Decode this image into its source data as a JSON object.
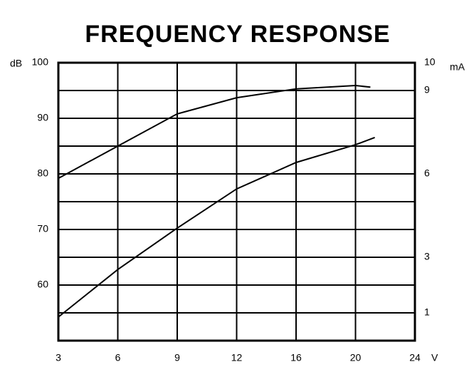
{
  "chart_data": {
    "type": "line",
    "title": "FREQUENCY RESPONSE",
    "y_label": "dB",
    "y2_label": "mA",
    "x_label": "V",
    "x": [
      3,
      6,
      9,
      12,
      16,
      20,
      21
    ],
    "series": [
      {
        "color": "#000000",
        "values": [
          79.2,
          85,
          90.8,
          93.7,
          95.3,
          95.9,
          95.6
        ]
      },
      {
        "color": "#000000",
        "axis": "y2",
        "x": [
          3,
          6,
          9,
          12,
          16,
          20,
          21.3
        ],
        "values": [
          0.85,
          2.56,
          4.05,
          5.46,
          6.41,
          7.05,
          7.31
        ]
      }
    ],
    "xlim": [
      3,
      24
    ],
    "xticks": [
      3,
      6,
      9,
      12,
      16,
      20,
      24
    ],
    "ylim": [
      50,
      100
    ],
    "yticks": [
      60,
      70,
      80,
      90,
      100
    ],
    "y2lim": [
      0,
      10
    ],
    "y2ticks": [
      1,
      3,
      6,
      9,
      10
    ],
    "ygrid": [
      55,
      65,
      75,
      85,
      95
    ],
    "grid": true
  }
}
